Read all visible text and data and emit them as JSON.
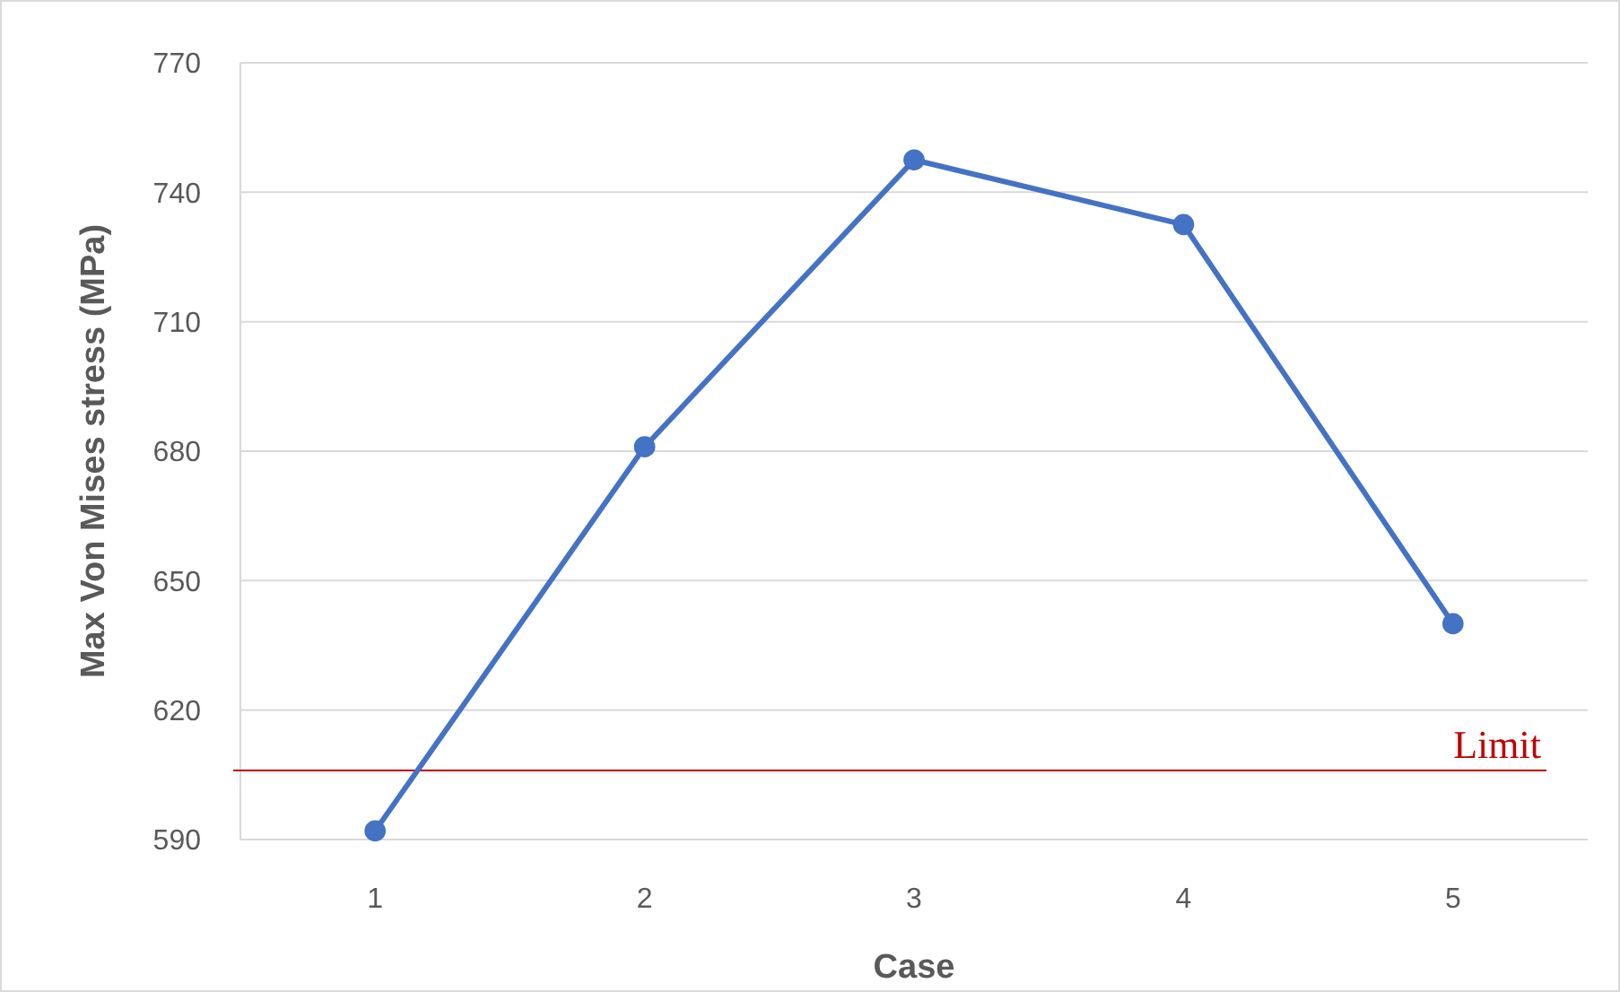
{
  "chart_data": {
    "type": "line",
    "xlabel": "Case",
    "ylabel": "Max Von Mises stress (MPa)",
    "categories": [
      "1",
      "2",
      "3",
      "4",
      "5"
    ],
    "series": [
      {
        "color": "#4472c4",
        "values": [
          592,
          681,
          747.5,
          732.5,
          640
        ]
      }
    ],
    "ylim": [
      590,
      770
    ],
    "yticks": [
      590,
      620,
      650,
      680,
      710,
      740,
      770
    ],
    "grid": "y",
    "marker": "circle",
    "line_style": "solid",
    "ref_lines": [
      {
        "axis": "y",
        "value": 606,
        "label": "Limit",
        "color": "#c00000"
      }
    ]
  }
}
